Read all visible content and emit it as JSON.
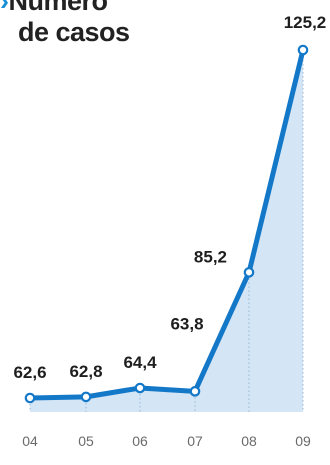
{
  "title": {
    "marker": "›",
    "line1": "Número",
    "line2": "de casos"
  },
  "colors": {
    "line": "#1478c8",
    "area": "#d4e5f5",
    "marker_fill": "#ffffff",
    "text": "#1e1e1e",
    "tick": "#6a6a6a"
  },
  "chart_data": {
    "type": "area",
    "title": "Número de casos",
    "xlabel": "",
    "ylabel": "",
    "categories": [
      "04",
      "05",
      "06",
      "07",
      "08",
      "09"
    ],
    "values": [
      62.6,
      62.8,
      64.4,
      63.8,
      85.2,
      125.2
    ],
    "value_labels": [
      "62,6",
      "62,8",
      "64,4",
      "63,8",
      "85,2",
      "125,2"
    ],
    "grid": false,
    "legend": "none"
  }
}
